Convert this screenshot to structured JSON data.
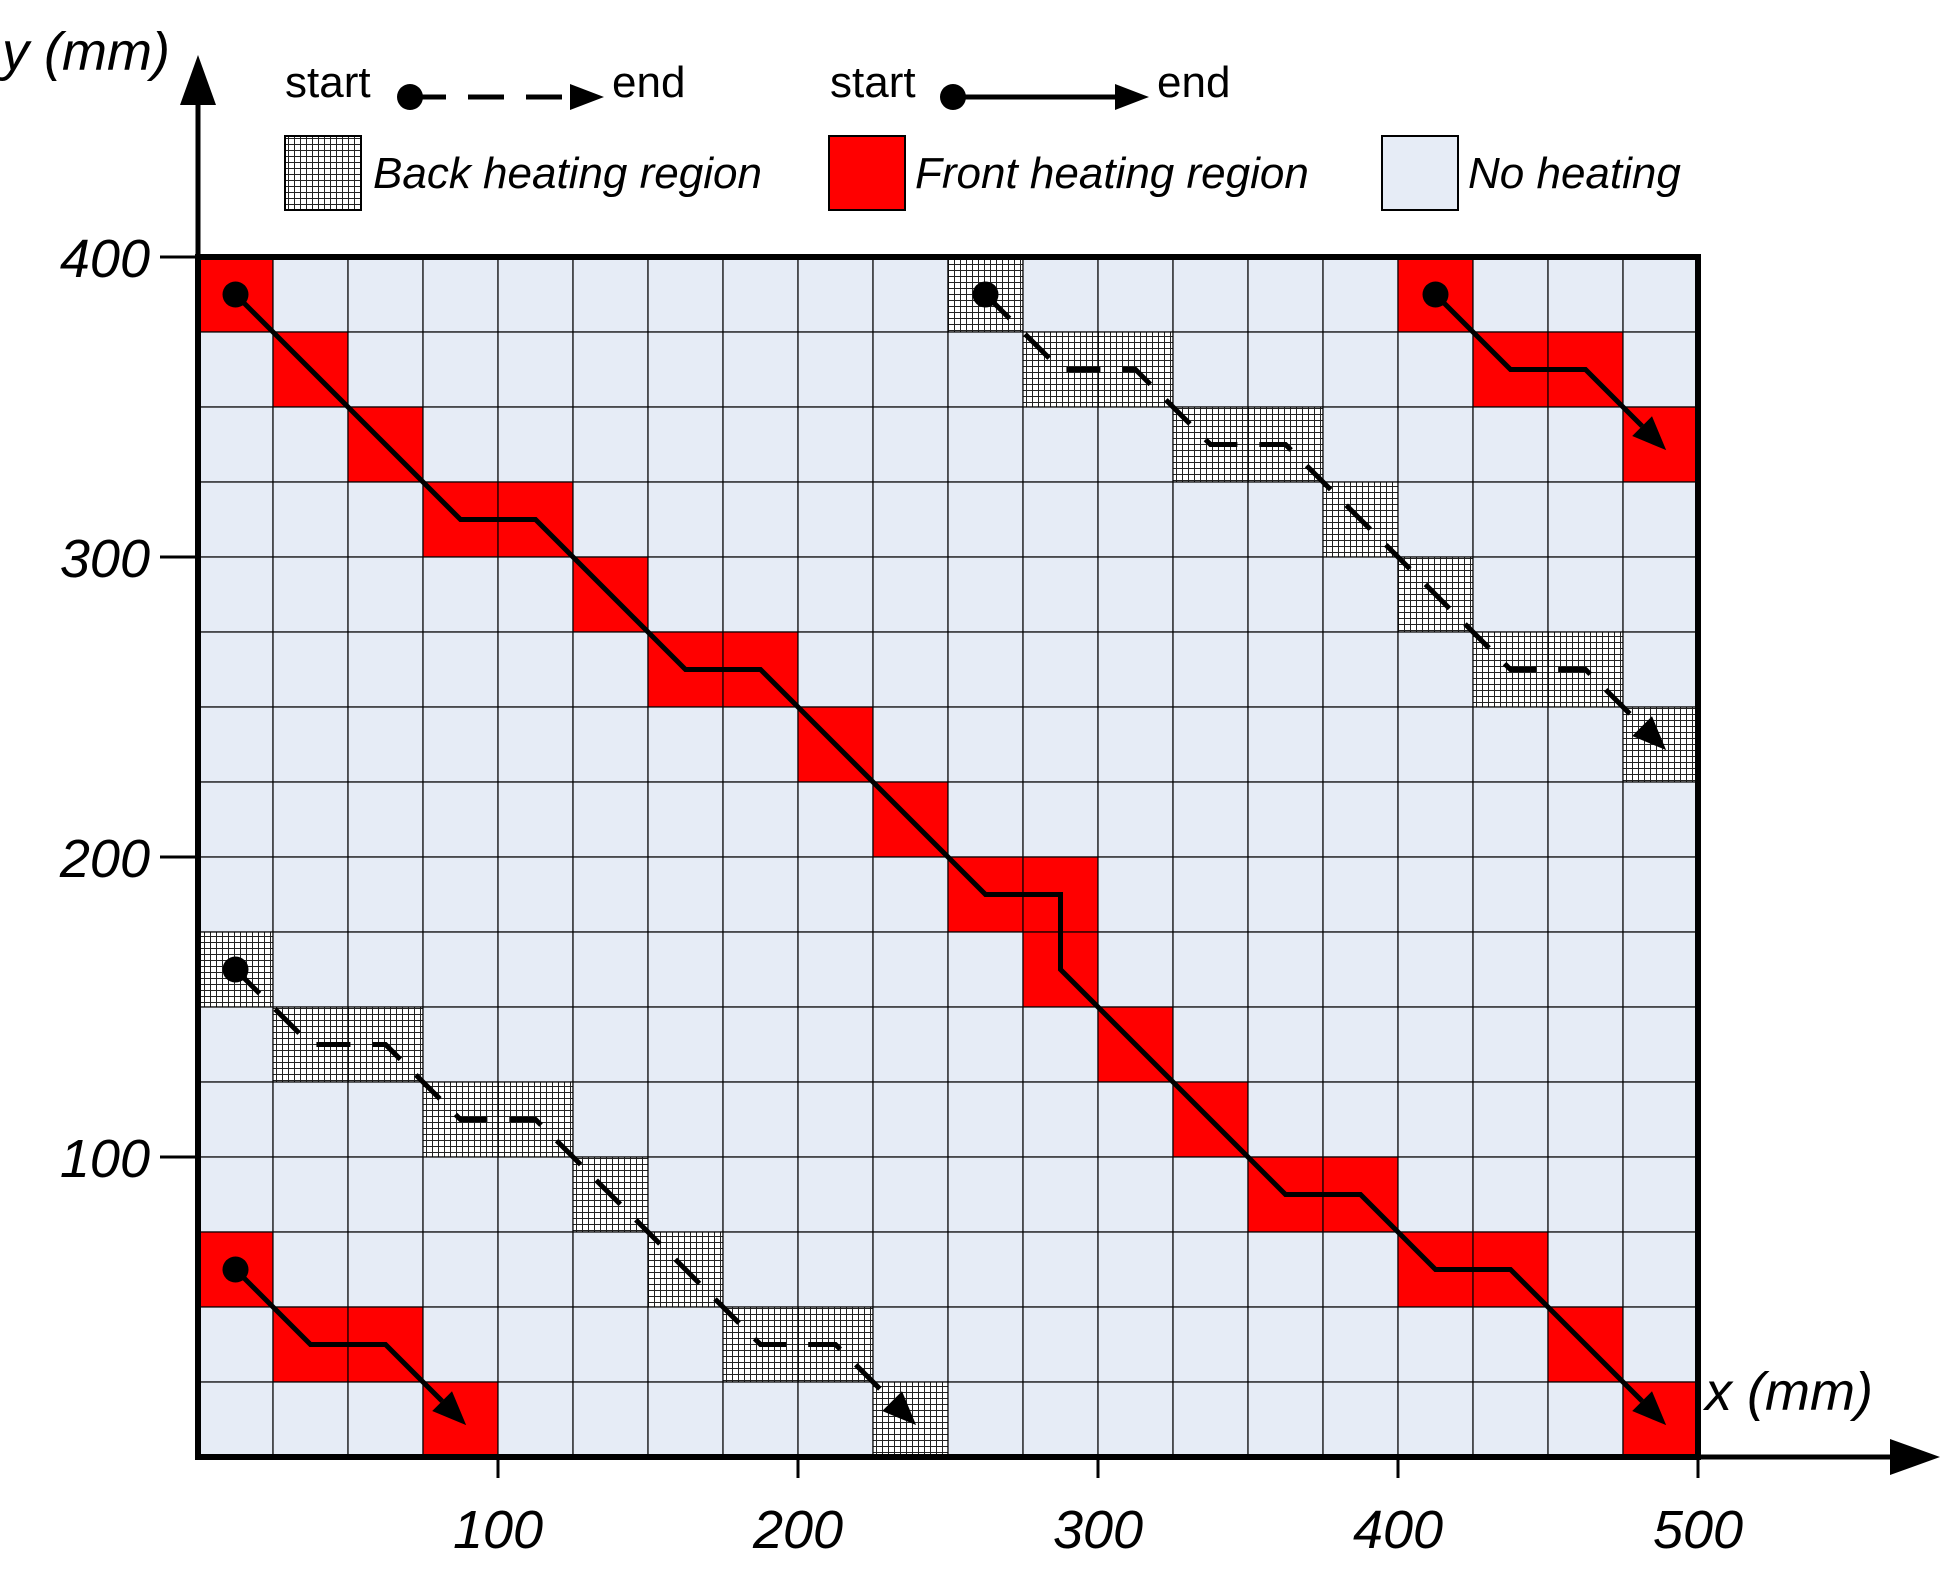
{
  "axes": {
    "x_label": "x (mm)",
    "y_label": "y (mm)",
    "x_ticks": [
      "100",
      "200",
      "300",
      "400",
      "500"
    ],
    "y_ticks": [
      "100",
      "200",
      "300",
      "400"
    ]
  },
  "legend": {
    "dashed_path": {
      "start": "start",
      "end": "end"
    },
    "solid_path": {
      "start": "start",
      "end": "end"
    },
    "back_heating": "Back heating region",
    "front_heating": "Front heating region",
    "no_heating": "No heating"
  },
  "colors": {
    "front": "#ff0000",
    "back_fill": "#ffffff",
    "back_hatch": "#222222",
    "none": "#e6ecf6",
    "grid": "#000000"
  },
  "grid": {
    "cols": 20,
    "rows": 16,
    "cell_mm": 25
  },
  "front_cells": [
    [
      0,
      0
    ],
    [
      1,
      1
    ],
    [
      2,
      2
    ],
    [
      3,
      3
    ],
    [
      4,
      3
    ],
    [
      5,
      4
    ],
    [
      6,
      5
    ],
    [
      7,
      5
    ],
    [
      8,
      6
    ],
    [
      9,
      7
    ],
    [
      10,
      8
    ],
    [
      11,
      8
    ],
    [
      11,
      9
    ],
    [
      12,
      10
    ],
    [
      13,
      11
    ],
    [
      14,
      12
    ],
    [
      15,
      12
    ],
    [
      16,
      13
    ],
    [
      17,
      13
    ],
    [
      18,
      14
    ],
    [
      19,
      15
    ],
    [
      16,
      0
    ],
    [
      17,
      1
    ],
    [
      18,
      1
    ],
    [
      19,
      2
    ],
    [
      0,
      13
    ],
    [
      1,
      14
    ],
    [
      2,
      14
    ],
    [
      3,
      15
    ]
  ],
  "back_cells": [
    [
      10,
      0
    ],
    [
      11,
      1
    ],
    [
      12,
      1
    ],
    [
      13,
      2
    ],
    [
      14,
      2
    ],
    [
      15,
      3
    ],
    [
      16,
      4
    ],
    [
      17,
      5
    ],
    [
      18,
      5
    ],
    [
      19,
      6
    ],
    [
      0,
      9
    ],
    [
      1,
      10
    ],
    [
      2,
      10
    ],
    [
      3,
      11
    ],
    [
      4,
      11
    ],
    [
      5,
      12
    ],
    [
      6,
      13
    ],
    [
      7,
      14
    ],
    [
      8,
      14
    ],
    [
      9,
      15
    ]
  ],
  "paths": [
    {
      "style": "solid",
      "cells": [
        [
          0,
          0
        ],
        [
          1,
          1
        ],
        [
          2,
          2
        ],
        [
          3,
          3
        ],
        [
          4,
          3
        ],
        [
          5,
          4
        ],
        [
          6,
          5
        ],
        [
          7,
          5
        ],
        [
          8,
          6
        ],
        [
          9,
          7
        ],
        [
          10,
          8
        ],
        [
          11,
          8
        ],
        [
          11,
          9
        ],
        [
          12,
          10
        ],
        [
          13,
          11
        ],
        [
          14,
          12
        ],
        [
          15,
          12
        ],
        [
          16,
          13
        ],
        [
          17,
          13
        ],
        [
          18,
          14
        ],
        [
          19,
          15
        ]
      ]
    },
    {
      "style": "solid",
      "cells": [
        [
          16,
          0
        ],
        [
          17,
          1
        ],
        [
          18,
          1
        ],
        [
          19,
          2
        ]
      ]
    },
    {
      "style": "solid",
      "cells": [
        [
          0,
          13
        ],
        [
          1,
          14
        ],
        [
          2,
          14
        ],
        [
          3,
          15
        ]
      ]
    },
    {
      "style": "dashed",
      "cells": [
        [
          10,
          0
        ],
        [
          11,
          1
        ],
        [
          12,
          1
        ],
        [
          13,
          2
        ],
        [
          14,
          2
        ],
        [
          15,
          3
        ],
        [
          16,
          4
        ],
        [
          17,
          5
        ],
        [
          18,
          5
        ],
        [
          19,
          6
        ]
      ]
    },
    {
      "style": "dashed",
      "cells": [
        [
          0,
          9
        ],
        [
          1,
          10
        ],
        [
          2,
          10
        ],
        [
          3,
          11
        ],
        [
          4,
          11
        ],
        [
          5,
          12
        ],
        [
          6,
          13
        ],
        [
          7,
          14
        ],
        [
          8,
          14
        ],
        [
          9,
          15
        ]
      ]
    }
  ]
}
